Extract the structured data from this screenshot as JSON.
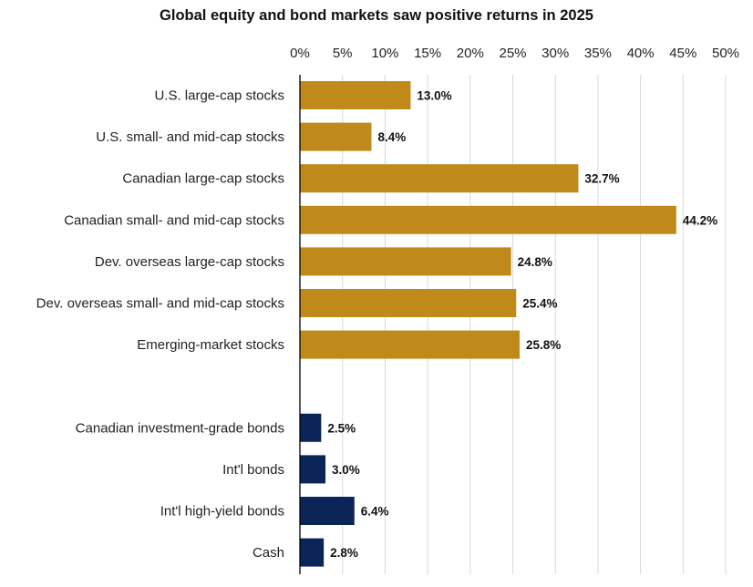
{
  "chart_data": {
    "type": "bar",
    "orientation": "horizontal",
    "title": "Global equity and bond markets saw positive returns in 2025",
    "xlabel": "",
    "ylabel": "",
    "xlim": [
      0,
      50
    ],
    "x_ticks": [
      "0%",
      "5%",
      "10%",
      "15%",
      "20%",
      "25%",
      "30%",
      "35%",
      "40%",
      "45%",
      "50%"
    ],
    "x_axis_position": "top",
    "grid": "vertical",
    "legend": "none",
    "colors": {
      "equity": "#BF8A1A",
      "bonds": "#0B2558"
    },
    "groups": [
      {
        "color_key": "equity",
        "categories": [
          "U.S. large-cap stocks",
          "U.S. small- and mid-cap stocks",
          "Canadian large-cap stocks",
          "Canadian small- and mid-cap stocks",
          "Dev. overseas large-cap stocks",
          "Dev. overseas small- and mid-cap stocks",
          "Emerging-market stocks"
        ],
        "values": [
          13.0,
          8.4,
          32.7,
          44.2,
          24.8,
          25.4,
          25.8
        ],
        "labels": [
          "13.0%",
          "8.4%",
          "32.7%",
          "44.2%",
          "24.8%",
          "25.4%",
          "25.8%"
        ]
      },
      {
        "color_key": "bonds",
        "categories": [
          "Canadian investment-grade bonds",
          "Int'l bonds",
          "Int'l high-yield bonds",
          "Cash"
        ],
        "values": [
          2.5,
          3.0,
          6.4,
          2.8
        ],
        "labels": [
          "2.5%",
          "3.0%",
          "6.4%",
          "2.8%"
        ]
      }
    ]
  }
}
